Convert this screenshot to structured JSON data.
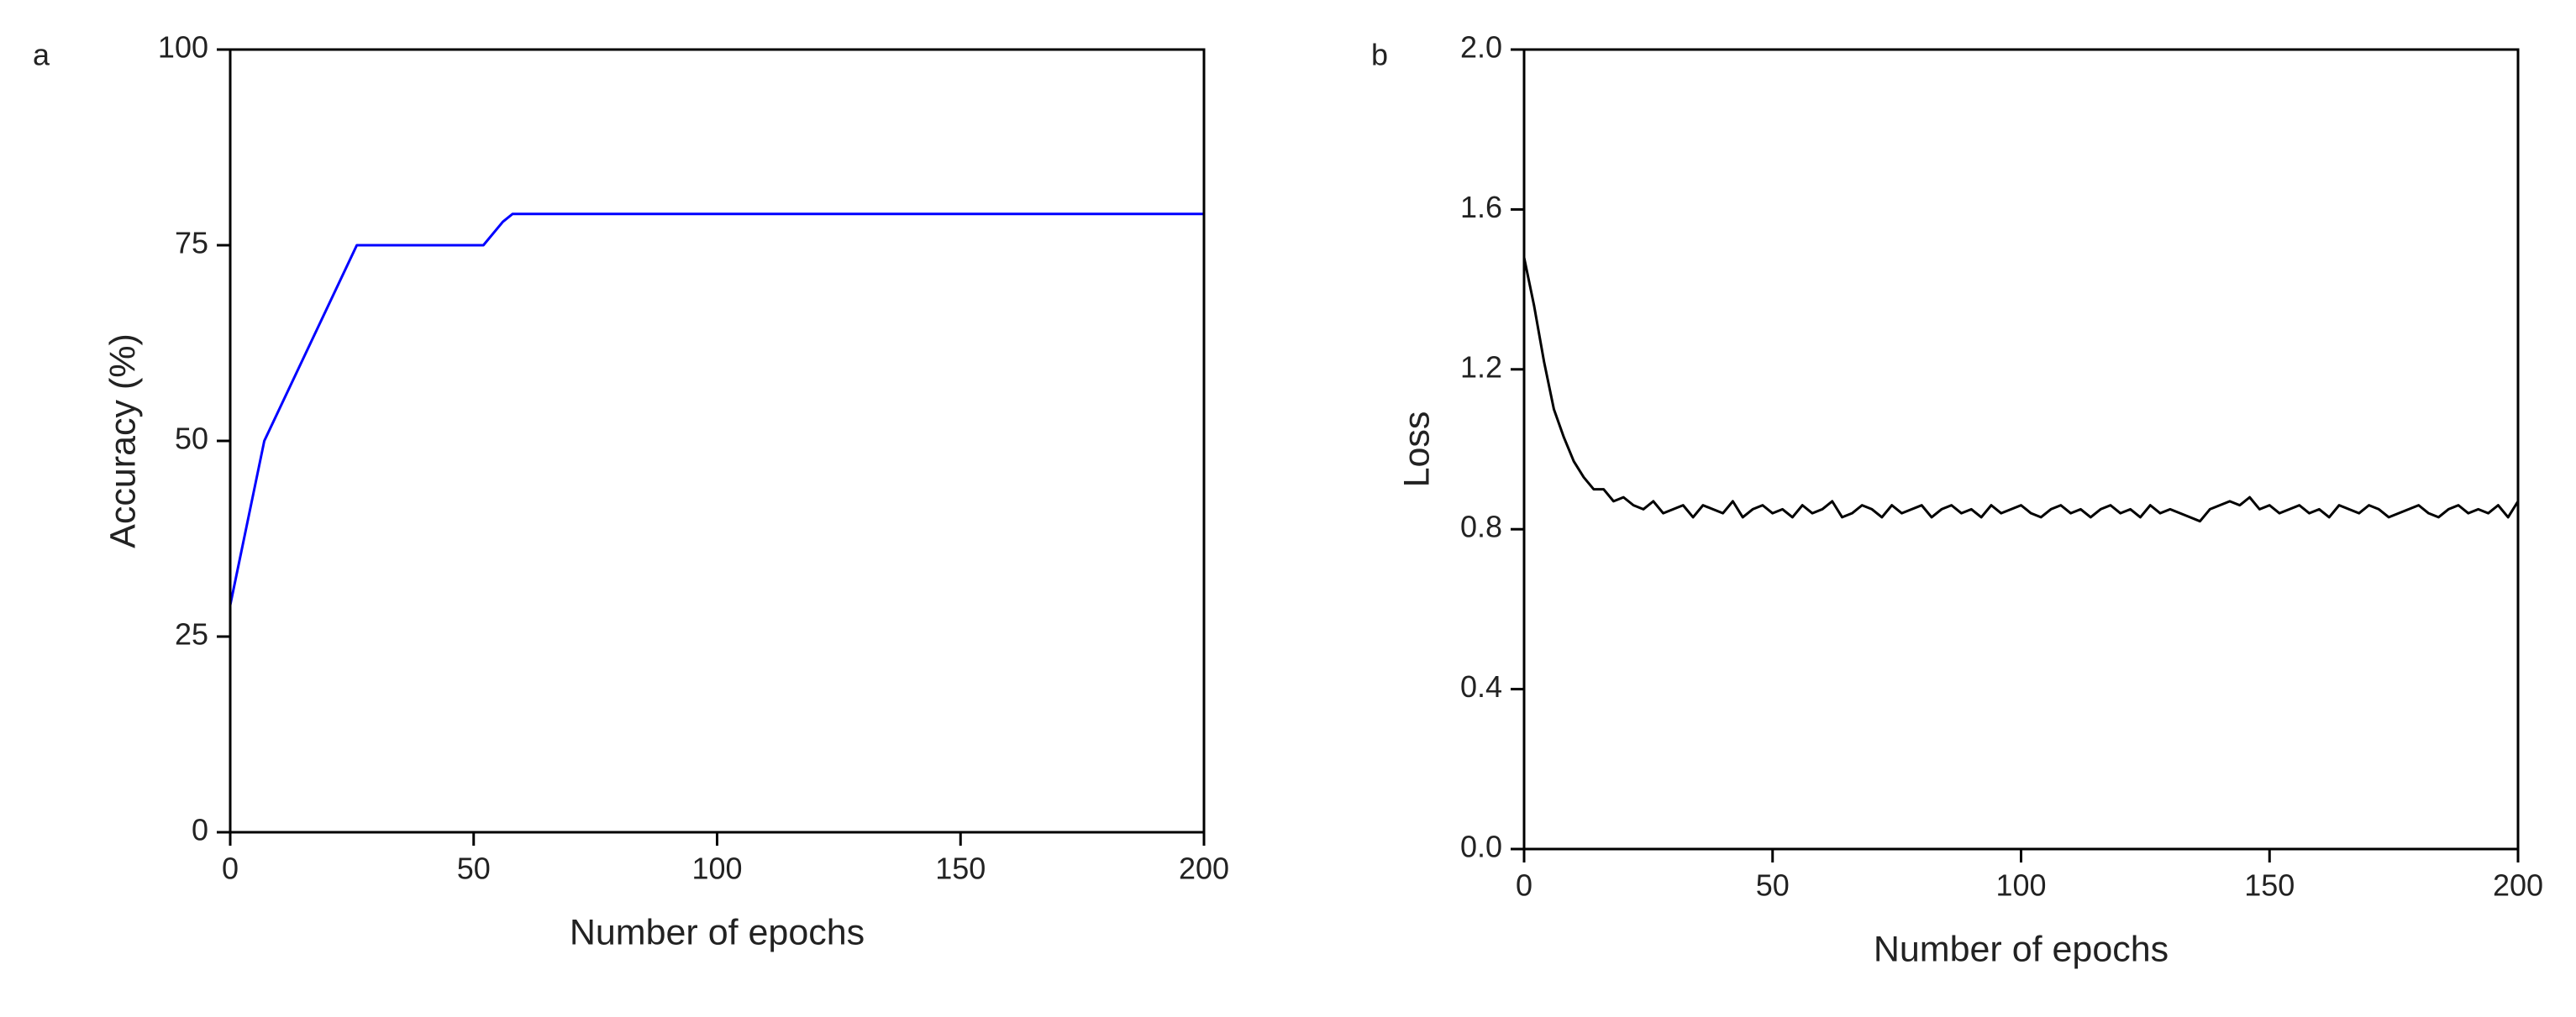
{
  "chart_data": [
    {
      "type": "line",
      "panel_label": "a",
      "x_label": "Number of epochs",
      "y_label": "Accuracy (%)",
      "color": "#0000ff",
      "x": [
        0,
        7,
        26,
        52,
        56,
        58,
        200
      ],
      "values": [
        29,
        50,
        75,
        75,
        78,
        79,
        79
      ],
      "xlim": [
        0,
        200
      ],
      "ylim": [
        0,
        100
      ],
      "xticks": [
        0,
        50,
        100,
        150,
        200
      ],
      "yticks": [
        0,
        25,
        50,
        75,
        100
      ]
    },
    {
      "type": "line",
      "panel_label": "b",
      "x_label": "Number of epochs",
      "y_label": "Loss",
      "color": "#000000",
      "x": [
        0,
        2,
        4,
        6,
        8,
        10,
        12,
        14,
        16,
        18,
        20,
        22,
        24,
        26,
        28,
        30,
        32,
        34,
        36,
        38,
        40,
        42,
        44,
        46,
        48,
        50,
        52,
        54,
        56,
        58,
        60,
        62,
        64,
        66,
        68,
        70,
        72,
        74,
        76,
        78,
        80,
        82,
        84,
        86,
        88,
        90,
        92,
        94,
        96,
        98,
        100,
        102,
        104,
        106,
        108,
        110,
        112,
        114,
        116,
        118,
        120,
        122,
        124,
        126,
        128,
        130,
        132,
        134,
        136,
        138,
        140,
        142,
        144,
        146,
        148,
        150,
        152,
        154,
        156,
        158,
        160,
        162,
        164,
        166,
        168,
        170,
        172,
        174,
        176,
        178,
        180,
        182,
        184,
        186,
        188,
        190,
        192,
        194,
        196,
        198,
        200
      ],
      "values": [
        1.48,
        1.36,
        1.22,
        1.1,
        1.03,
        0.97,
        0.93,
        0.9,
        0.9,
        0.87,
        0.88,
        0.86,
        0.85,
        0.87,
        0.84,
        0.85,
        0.86,
        0.83,
        0.86,
        0.85,
        0.84,
        0.87,
        0.83,
        0.85,
        0.86,
        0.84,
        0.85,
        0.83,
        0.86,
        0.84,
        0.85,
        0.87,
        0.83,
        0.84,
        0.86,
        0.85,
        0.83,
        0.86,
        0.84,
        0.85,
        0.86,
        0.83,
        0.85,
        0.86,
        0.84,
        0.85,
        0.83,
        0.86,
        0.84,
        0.85,
        0.86,
        0.84,
        0.83,
        0.85,
        0.86,
        0.84,
        0.85,
        0.83,
        0.85,
        0.86,
        0.84,
        0.85,
        0.83,
        0.86,
        0.84,
        0.85,
        0.84,
        0.83,
        0.82,
        0.85,
        0.86,
        0.87,
        0.86,
        0.88,
        0.85,
        0.86,
        0.84,
        0.85,
        0.86,
        0.84,
        0.85,
        0.83,
        0.86,
        0.85,
        0.84,
        0.86,
        0.85,
        0.83,
        0.84,
        0.85,
        0.86,
        0.84,
        0.83,
        0.85,
        0.86,
        0.84,
        0.85,
        0.84,
        0.86,
        0.83,
        0.87
      ],
      "xlim": [
        0,
        200
      ],
      "ylim": [
        0,
        2
      ],
      "xticks": [
        0,
        50,
        100,
        150,
        200
      ],
      "yticks": [
        {
          "value": 0,
          "label": "0.0"
        },
        0.4,
        0.8,
        1.2,
        1.6,
        {
          "value": 2,
          "label": "2.0"
        }
      ]
    }
  ]
}
